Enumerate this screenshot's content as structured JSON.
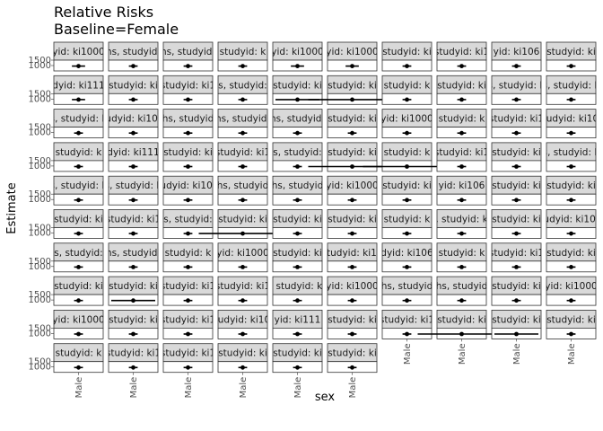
{
  "chart_data": {
    "type": "scatter",
    "title": "Relative Risks",
    "subtitle": "Baseline=Female",
    "xlabel": "sex",
    "ylabel": "Estimate",
    "x_categories": [
      "Male"
    ],
    "y_tick_labels": [
      "1000",
      "1500"
    ],
    "layout": {
      "columns": 10,
      "rows": 10,
      "panel_count": 96
    },
    "panels": [
      {
        "strip": "yid: ki1000",
        "ci": 0.3
      },
      {
        "strip": "hs, studyid:",
        "ci": 0.2
      },
      {
        "strip": "ns, studyid:",
        "ci": 0.2
      },
      {
        "strip": "studyid: k",
        "ci": 0.2
      },
      {
        "strip": "yid: ki1000",
        "ci": 0.3
      },
      {
        "strip": "yid: ki1000",
        "ci": 0.3
      },
      {
        "strip": "studyid: ki",
        "ci": 0.2
      },
      {
        "strip": "studyid: ki1",
        "ci": 0.2
      },
      {
        "strip": "yid: ki106",
        "ci": 0.2
      },
      {
        "strip": "studyid: ki",
        "ci": 0.2
      },
      {
        "strip": "dyid: ki111",
        "ci": 0.3
      },
      {
        "strip": "studyid: ki",
        "ci": 0.2
      },
      {
        "strip": "studyid: ki1",
        "ci": 0.2
      },
      {
        "strip": "s, studyid:",
        "ci": 0.2
      },
      {
        "strip": "studyid: ki",
        "ci": 1.0
      },
      {
        "strip": "studyid: ki",
        "ci": 2.0
      },
      {
        "strip": "studyid: k",
        "ci": 0.2
      },
      {
        "strip": "studyid: ki",
        "ci": 0.2
      },
      {
        "strip": "s, studyid: k",
        "ci": 0.2
      },
      {
        "strip": "s, studyid: k",
        "ci": 0.2
      },
      {
        "strip": "s, studyid: k",
        "ci": 0.2
      },
      {
        "strip": "studyid: ki1000",
        "ci": 0.2
      },
      {
        "strip": "hs, studyid",
        "ci": 0.2
      },
      {
        "strip": "hs, studyid:",
        "ci": 0.2
      },
      {
        "strip": "hs, studyid:",
        "ci": 0.2
      },
      {
        "strip": "studyid: ki",
        "ci": 0.2
      },
      {
        "strip": "yid: ki1000",
        "ci": 0.2
      },
      {
        "strip": "studyid: k",
        "ci": 0.2
      },
      {
        "strip": "studyid: ki1",
        "ci": 0.2
      },
      {
        "strip": "studyid: ki106",
        "ci": 0.2
      },
      {
        "strip": "studyid: k",
        "ci": 0.2
      },
      {
        "strip": "dyid: ki111",
        "ci": 0.2
      },
      {
        "strip": "studyid: ki",
        "ci": 0.2
      },
      {
        "strip": "studyid: ki1",
        "ci": 0.2
      },
      {
        "strip": "s, studyid:",
        "ci": 0.2
      },
      {
        "strip": "studyid: ki",
        "ci": 2.0
      },
      {
        "strip": "studyid: k",
        "ci": 2.0
      },
      {
        "strip": "studyid: ki1",
        "ci": 0.2
      },
      {
        "strip": "studyid: ki",
        "ci": 0.2
      },
      {
        "strip": "s, studyid: k",
        "ci": 0.2
      },
      {
        "strip": "s, studyid: k",
        "ci": 0.2
      },
      {
        "strip": "s, studyid: k",
        "ci": 0.2
      },
      {
        "strip": "studyid: ki1000",
        "ci": 0.2
      },
      {
        "strip": "hs, studyid",
        "ci": 0.2
      },
      {
        "strip": "hs, studyid",
        "ci": 0.2
      },
      {
        "strip": "yid: ki1000",
        "ci": 0.2
      },
      {
        "strip": "studyid: ki",
        "ci": 0.2
      },
      {
        "strip": "yid: ki106",
        "ci": 0.2
      },
      {
        "strip": "studyid: ki",
        "ci": 0.2
      },
      {
        "strip": "studyid: ki",
        "ci": 0.2
      },
      {
        "strip": "studyid: ki",
        "ci": 0.2
      },
      {
        "strip": "studyid: ki1",
        "ci": 0.2
      },
      {
        "strip": "s, studyid:",
        "ci": 0.2
      },
      {
        "strip": "studyid: ki",
        "ci": 2.0
      },
      {
        "strip": "studyid: ki",
        "ci": 0.2
      },
      {
        "strip": "studyid: ki",
        "ci": 0.2
      },
      {
        "strip": "studyid: k",
        "ci": 0.2
      },
      {
        "strip": ", studyid: k",
        "ci": 0.2
      },
      {
        "strip": "studyid: ki",
        "ci": 0.2
      },
      {
        "strip": "studyid: ki1000",
        "ci": 0.2
      },
      {
        "strip": "s, studyid:",
        "ci": 0.2
      },
      {
        "strip": "hs, studyid:",
        "ci": 0.2
      },
      {
        "strip": "studyid: k",
        "ci": 0.2
      },
      {
        "strip": "yid: ki1000",
        "ci": 0.2
      },
      {
        "strip": "studyid: ki",
        "ci": 0.2
      },
      {
        "strip": "studyid: ki10",
        "ci": 0.2
      },
      {
        "strip": "dyid: ki106",
        "ci": 0.2
      },
      {
        "strip": "studyid: k",
        "ci": 0.2
      },
      {
        "strip": "studyid: ki1",
        "ci": 0.2
      },
      {
        "strip": "studyid: ki",
        "ci": 0.2
      },
      {
        "strip": "studyid: ki",
        "ci": 0.2
      },
      {
        "strip": "studyid: ki",
        "ci": 1.0
      },
      {
        "strip": "studyid: ki1",
        "ci": 0.2
      },
      {
        "strip": "studyid: ki1",
        "ci": 0.2
      },
      {
        "strip": ", studyid: ki",
        "ci": 0.2
      },
      {
        "strip": "yid: ki1000",
        "ci": 0.2
      },
      {
        "strip": "hs, studyid",
        "ci": 0.2
      },
      {
        "strip": "hs, studyid",
        "ci": 0.2
      },
      {
        "strip": "studyid: ki",
        "ci": 0.2
      },
      {
        "strip": "yid: ki1000",
        "ci": 0.2
      },
      {
        "strip": "yid: ki1000",
        "ci": 0.2
      },
      {
        "strip": "studyid: ki",
        "ci": 0.2
      },
      {
        "strip": "studyid: ki1",
        "ci": 0.2
      },
      {
        "strip": "studyid: ki106",
        "ci": 0.2
      },
      {
        "strip": "yid: ki111",
        "ci": 0.2
      },
      {
        "strip": "studyid: ki",
        "ci": 0.2
      },
      {
        "strip": "studyid: ki1",
        "ci": 0.2
      },
      {
        "strip": "studyid: ki",
        "ci": 2.0
      },
      {
        "strip": "studyid: ki",
        "ci": 1.0
      },
      {
        "strip": "studyid: ki",
        "ci": 0.2
      },
      {
        "strip": "studyid: k",
        "ci": 0.2
      },
      {
        "strip": "studyid: ki1",
        "ci": 0.2
      },
      {
        "strip": "studyid: ki1",
        "ci": 0.2
      },
      {
        "strip": "studyid: ki",
        "ci": 0.2
      },
      {
        "strip": "studyid: ki",
        "ci": 0.2
      },
      {
        "strip": "studyid: ki",
        "ci": 0.2
      }
    ],
    "colors": {
      "strip_fill": "#d9d9d9",
      "strip_border": "#333333",
      "point": "#000000"
    }
  }
}
